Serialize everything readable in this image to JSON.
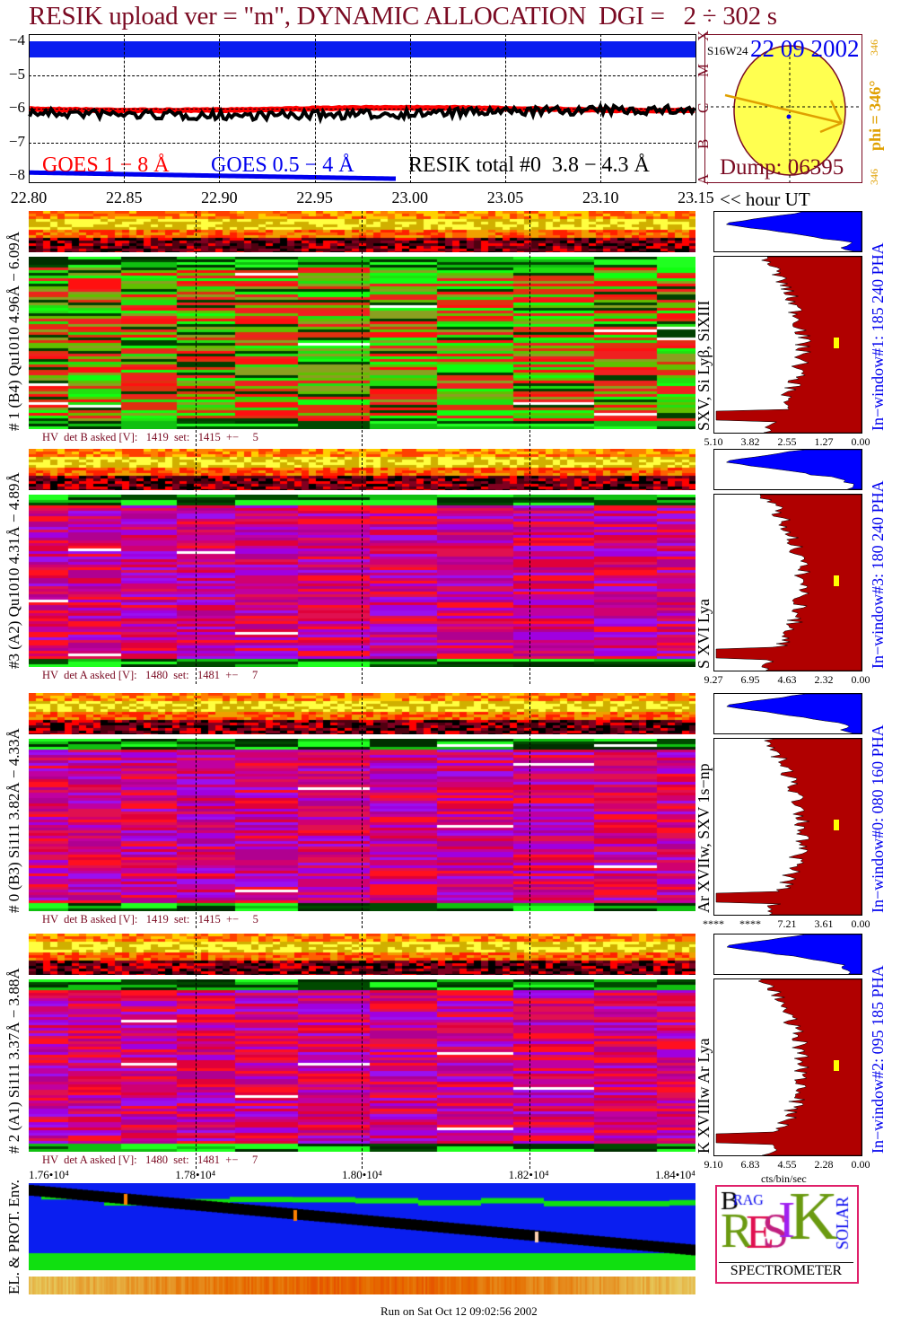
{
  "title": "RESIK upload ver = \"m\", DYNAMIC ALLOCATION  DGI =   2 ÷ 302 s",
  "top_plot": {
    "chart_data": {
      "type": "line",
      "ylabel": "log flux",
      "yticks": [
        "−4",
        "−5",
        "−6",
        "−7",
        "−8"
      ],
      "ylim": [
        -8,
        -4
      ],
      "xticks": [
        "22.80",
        "22.85",
        "22.90",
        "22.95",
        "23.00",
        "23.05",
        "23.10",
        "23.15"
      ],
      "xlabel": "<< hour UT",
      "xlim": [
        22.8,
        23.15
      ],
      "series": [
        {
          "name": "GOES 1 − 8 Å",
          "color": "#ff0000",
          "approx_value": -6.0
        },
        {
          "name": "GOES 0.5 − 4 Å",
          "color": "#0000ee",
          "approx_value": -8.0
        },
        {
          "name": "RESIK total #0  3.8 − 4.3 Å",
          "color": "#000000",
          "approx_value": -6.1
        }
      ]
    },
    "class_labels": [
      "A",
      "B",
      "C",
      "M",
      "X"
    ],
    "legend": {
      "goes_long": "GOES 1 − 8 Å",
      "goes_short": "GOES 0.5 − 4 Å",
      "resik": "RESIK total #0  3.8 − 4.3 Å"
    }
  },
  "sun_panel": {
    "location": "S16W24",
    "date": "22 09 2002",
    "dump": "Dump: 06395",
    "phi": "phi = 346°",
    "phi_small_top": "346",
    "phi_small_bottom": "346"
  },
  "panels": [
    {
      "label": "# 1 (B4) Qu1010 4.96Å − 6.09Å",
      "lines": "SXV, Si Lyβ, SiXIII",
      "window": "In−window#1:  185 240 PHA",
      "hv": "HV  det B asked [V]:   1419  set:   1415  +−     5",
      "hist_ticks": [
        "5.10",
        "3.82",
        "2.55",
        "1.27",
        "0.00"
      ],
      "style": "green"
    },
    {
      "label": "#3 (A2) Qu1010  4.31Å − 4.89Å",
      "lines": "S XVI Lya",
      "window": "In−window#3:  180 240 PHA",
      "hv": "HV  det A asked [V]:   1480  set:   1481  +−     7",
      "hist_ticks": [
        "9.27",
        "6.95",
        "4.63",
        "2.32",
        "0.00"
      ],
      "style": "magenta"
    },
    {
      "label": "# 0 (B3) Si111  3.82Å − 4.33Å",
      "lines": "Ar XVIIw,  SXV 1s−np",
      "window": "In−window#0:  080 160 PHA",
      "hv": "HV  det B asked [V]:   1419  set:   1415  +−     5",
      "hist_ticks": [
        "****",
        "****",
        "7.21",
        "3.61",
        "0.00"
      ],
      "style": "magenta"
    },
    {
      "label": "# 2 (A1) Si111  3.37Å − 3.88Å",
      "lines": "K XVIIIw  Ar Lya",
      "window": "In−window#2:  095 185 PHA",
      "hv": "HV  det A asked [V]:   1480  set:   1481  +−     7",
      "hist_ticks": [
        "9.10",
        "6.83",
        "4.55",
        "2.28",
        "0.00"
      ],
      "style": "magenta"
    }
  ],
  "hist_xlabel": "cts/bin/sec",
  "bottom": {
    "xticks": [
      "1.76•10⁴",
      "1.78•10⁴",
      "1.80•10⁴",
      "1.82•10⁴",
      "1.84•10⁴"
    ],
    "ylabel": "EL. & PROT. Env."
  },
  "logo": {
    "text": "BRAGG RESIK SOLAR SPECTROMETER",
    "label": "SPECTROMETER"
  },
  "footer": "Run on Sat Oct 12 09:02:56 2002",
  "colors": {
    "title": "#7a0a22",
    "blue": "#0000ee",
    "hist_red": "#b00000",
    "hist_blue": "#0000ff",
    "sun": "#ffff50",
    "arrow": "#e0a000"
  }
}
